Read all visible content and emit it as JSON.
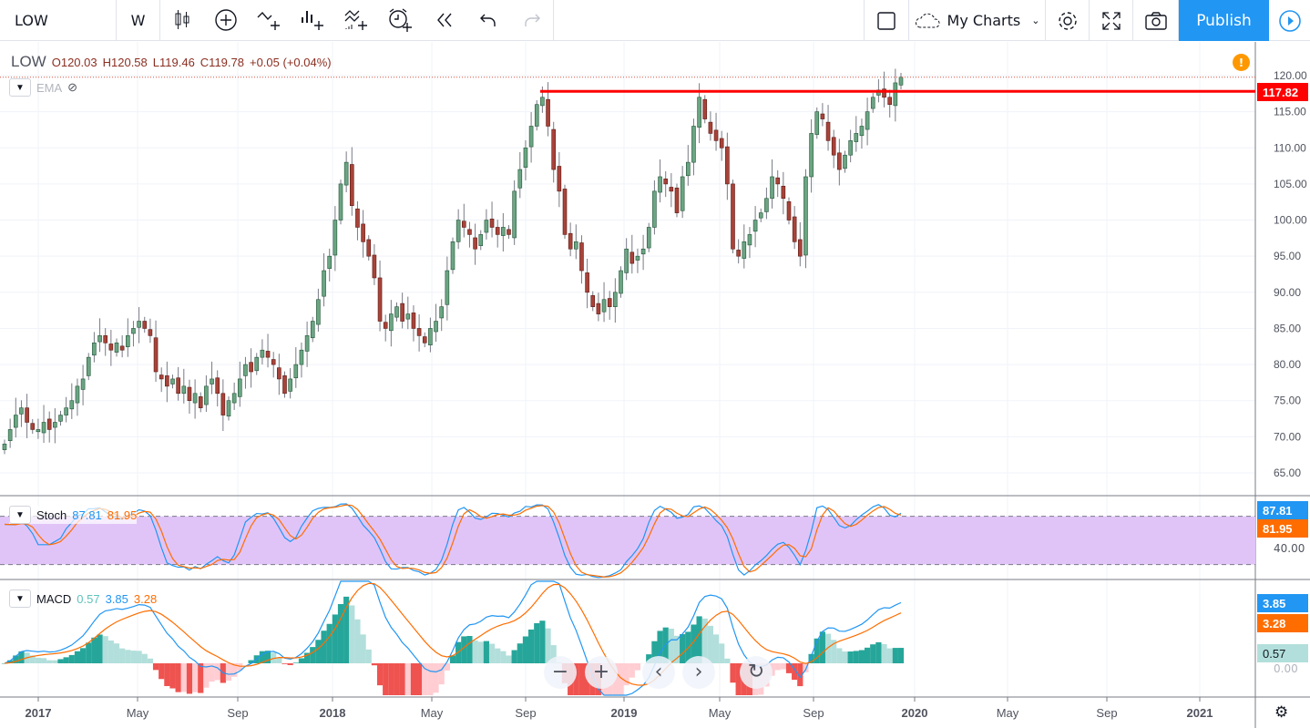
{
  "toolbar": {
    "symbol": "LOW",
    "interval": "W",
    "icons": [
      "candles-icon",
      "add-indicator-icon",
      "compare-icon",
      "bar-template-icon",
      "indicators-icon",
      "alert-icon",
      "replay-icon",
      "undo-icon",
      "redo-icon"
    ],
    "my_charts": "My Charts",
    "publish": "Publish"
  },
  "legend": {
    "symbol": "LOW",
    "open": "O120.03",
    "high": "H120.58",
    "low": "L119.46",
    "close": "C119.78",
    "change": "+0.05 (+0.04%)",
    "ema": "EMA"
  },
  "stoch": {
    "label": "Stoch",
    "k": "87.81",
    "d": "81.95",
    "axis_label": "40.00"
  },
  "macd": {
    "label": "MACD",
    "hist": "0.57",
    "macd": "3.85",
    "signal": "3.28",
    "axis_zero": "0.00"
  },
  "colors": {
    "up": "#6ba583",
    "down": "#a8433a",
    "stoch_k": "#2196f3",
    "stoch_d": "#ff6d00",
    "band": "#e1c4f7",
    "hline": "#ff0000",
    "publish": "#2196f3"
  },
  "chart_data": {
    "type": "candlestick",
    "symbol": "LOW",
    "interval": "weekly",
    "x_ticks": [
      {
        "label": "2017",
        "bold": true
      },
      {
        "label": "May"
      },
      {
        "label": "Sep"
      },
      {
        "label": "2018",
        "bold": true
      },
      {
        "label": "May"
      },
      {
        "label": "Sep"
      },
      {
        "label": "2019",
        "bold": true
      },
      {
        "label": "May"
      },
      {
        "label": "Sep"
      },
      {
        "label": "2020",
        "bold": true
      },
      {
        "label": "May"
      },
      {
        "label": "Sep"
      },
      {
        "label": "2021",
        "bold": true
      }
    ],
    "y_ticks": [
      "120.00",
      "115.00",
      "110.00",
      "105.00",
      "100.00",
      "95.00",
      "90.00",
      "85.00",
      "80.00",
      "75.00",
      "70.00",
      "65.00"
    ],
    "ylim": [
      62,
      124
    ],
    "horizontal_line": {
      "value": "117.82"
    },
    "closes": [
      69,
      71,
      73,
      74,
      72,
      71,
      71,
      72,
      71,
      72,
      73,
      74,
      75,
      77,
      78,
      81,
      83,
      84,
      83,
      82,
      83,
      82,
      84,
      85,
      86,
      85,
      84,
      79,
      78,
      77,
      78,
      76,
      77,
      75,
      76,
      74,
      77,
      78,
      76,
      73,
      75,
      76,
      78,
      80,
      79,
      81,
      82,
      81,
      80,
      78,
      76,
      78,
      80,
      82,
      84,
      86,
      89,
      93,
      95,
      100,
      105,
      108,
      102,
      99,
      97,
      95,
      92,
      86,
      85,
      87,
      88,
      86,
      87,
      85,
      84,
      83,
      85,
      86,
      88,
      93,
      97,
      100,
      99,
      98,
      96,
      98,
      100,
      99,
      98,
      99,
      98,
      104,
      107,
      110,
      113,
      116,
      117,
      113,
      107,
      104,
      98,
      96,
      97,
      93,
      90,
      88,
      87,
      89,
      88,
      90,
      93,
      96,
      94,
      95,
      96,
      99,
      104,
      106,
      105,
      104,
      101,
      106,
      108,
      113,
      117,
      114,
      112,
      111,
      110,
      105,
      96,
      95,
      97,
      98,
      100,
      101,
      103,
      106,
      105,
      103,
      100,
      97,
      95,
      106,
      112,
      115,
      114,
      111,
      109,
      107,
      109,
      111,
      112,
      113,
      115,
      117,
      118,
      117,
      116,
      119,
      119.78
    ],
    "stoch_ylim": [
      0,
      100
    ],
    "stoch_bands": [
      20,
      80
    ]
  },
  "nav": {
    "zoom_out": "−",
    "zoom_in": "+",
    "back": "‹",
    "forward": "›",
    "reset": "↻"
  }
}
